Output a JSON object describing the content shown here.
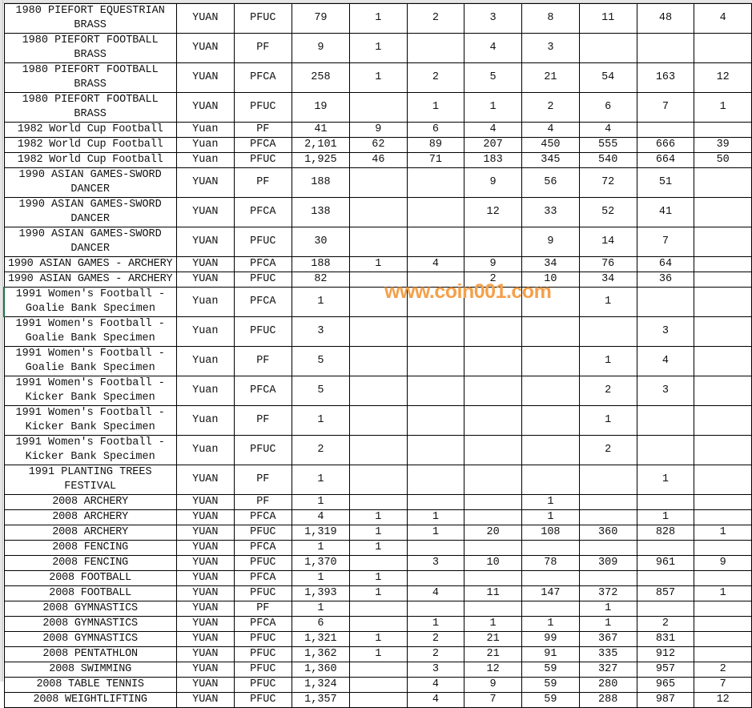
{
  "sheet": {
    "rows": [
      {
        "name": "1980 PIEFORT EQUESTRIAN BRASS",
        "unit": "YUAN",
        "type": "PFUC",
        "vals": [
          "79",
          "1",
          "2",
          "3",
          "8",
          "11",
          "48",
          "4"
        ]
      },
      {
        "name": "1980 PIEFORT FOOTBALL BRASS",
        "unit": "YUAN",
        "type": "PF",
        "vals": [
          "9",
          "1",
          "",
          "4",
          "3",
          "",
          "",
          ""
        ]
      },
      {
        "name": "1980 PIEFORT FOOTBALL BRASS",
        "unit": "YUAN",
        "type": "PFCA",
        "vals": [
          "258",
          "1",
          "2",
          "5",
          "21",
          "54",
          "163",
          "12"
        ]
      },
      {
        "name": "1980 PIEFORT FOOTBALL BRASS",
        "unit": "YUAN",
        "type": "PFUC",
        "vals": [
          "19",
          "",
          "1",
          "1",
          "2",
          "6",
          "7",
          "1"
        ]
      },
      {
        "name": "1982 World Cup Football",
        "unit": "Yuan",
        "type": "PF",
        "vals": [
          "41",
          "9",
          "6",
          "4",
          "4",
          "4",
          "",
          ""
        ]
      },
      {
        "name": "1982 World Cup Football",
        "unit": "Yuan",
        "type": "PFCA",
        "vals": [
          "2,101",
          "62",
          "89",
          "207",
          "450",
          "555",
          "666",
          "39"
        ]
      },
      {
        "name": "1982 World Cup Football",
        "unit": "Yuan",
        "type": "PFUC",
        "vals": [
          "1,925",
          "46",
          "71",
          "183",
          "345",
          "540",
          "664",
          "50"
        ]
      },
      {
        "name": "1990 ASIAN GAMES-SWORD DANCER",
        "unit": "YUAN",
        "type": "PF",
        "vals": [
          "188",
          "",
          "",
          "9",
          "56",
          "72",
          "51",
          ""
        ]
      },
      {
        "name": "1990 ASIAN GAMES-SWORD DANCER",
        "unit": "YUAN",
        "type": "PFCA",
        "vals": [
          "138",
          "",
          "",
          "12",
          "33",
          "52",
          "41",
          ""
        ]
      },
      {
        "name": "1990 ASIAN GAMES-SWORD DANCER",
        "unit": "YUAN",
        "type": "PFUC",
        "vals": [
          "30",
          "",
          "",
          "",
          "9",
          "14",
          "7",
          ""
        ]
      },
      {
        "name": "1990 ASIAN GAMES - ARCHERY",
        "unit": "YUAN",
        "type": "PFCA",
        "vals": [
          "188",
          "1",
          "4",
          "9",
          "34",
          "76",
          "64",
          ""
        ]
      },
      {
        "name": "1990 ASIAN GAMES - ARCHERY",
        "unit": "YUAN",
        "type": "PFUC",
        "vals": [
          "82",
          "",
          "",
          "2",
          "10",
          "34",
          "36",
          ""
        ]
      },
      {
        "name": "1991 Women's Football - Goalie Bank Specimen",
        "unit": "Yuan",
        "type": "PFCA",
        "vals": [
          "1",
          "",
          "",
          "",
          "",
          "1",
          "",
          ""
        ]
      },
      {
        "name": "1991 Women's Football - Goalie Bank Specimen",
        "unit": "Yuan",
        "type": "PFUC",
        "vals": [
          "3",
          "",
          "",
          "",
          "",
          "",
          "3",
          ""
        ]
      },
      {
        "name": "1991 Women's Football - Goalie Bank Specimen",
        "unit": "Yuan",
        "type": "PF",
        "vals": [
          "5",
          "",
          "",
          "",
          "",
          "1",
          "4",
          ""
        ]
      },
      {
        "name": "1991 Women's Football - Kicker Bank Specimen",
        "unit": "Yuan",
        "type": "PFCA",
        "vals": [
          "5",
          "",
          "",
          "",
          "",
          "2",
          "3",
          ""
        ]
      },
      {
        "name": "1991 Women's Football - Kicker Bank Specimen",
        "unit": "Yuan",
        "type": "PF",
        "vals": [
          "1",
          "",
          "",
          "",
          "",
          "1",
          "",
          ""
        ]
      },
      {
        "name": "1991 Women's Football - Kicker Bank Specimen",
        "unit": "Yuan",
        "type": "PFUC",
        "vals": [
          "2",
          "",
          "",
          "",
          "",
          "2",
          "",
          ""
        ]
      },
      {
        "name": "1991 PLANTING TREES FESTIVAL",
        "unit": "YUAN",
        "type": "PF",
        "vals": [
          "1",
          "",
          "",
          "",
          "",
          "",
          "1",
          ""
        ]
      },
      {
        "name": "2008 ARCHERY",
        "unit": "YUAN",
        "type": "PF",
        "vals": [
          "1",
          "",
          "",
          "",
          "1",
          "",
          "",
          ""
        ]
      },
      {
        "name": "2008 ARCHERY",
        "unit": "YUAN",
        "type": "PFCA",
        "vals": [
          "4",
          "1",
          "1",
          "",
          "1",
          "",
          "1",
          ""
        ]
      },
      {
        "name": "2008 ARCHERY",
        "unit": "YUAN",
        "type": "PFUC",
        "vals": [
          "1,319",
          "1",
          "1",
          "20",
          "108",
          "360",
          "828",
          "1"
        ]
      },
      {
        "name": "2008 FENCING",
        "unit": "YUAN",
        "type": "PFCA",
        "vals": [
          "1",
          "1",
          "",
          "",
          "",
          "",
          "",
          ""
        ]
      },
      {
        "name": "2008 FENCING",
        "unit": "YUAN",
        "type": "PFUC",
        "vals": [
          "1,370",
          "",
          "3",
          "10",
          "78",
          "309",
          "961",
          "9"
        ]
      },
      {
        "name": "2008 FOOTBALL",
        "unit": "YUAN",
        "type": "PFCA",
        "vals": [
          "1",
          "1",
          "",
          "",
          "",
          "",
          "",
          ""
        ]
      },
      {
        "name": "2008 FOOTBALL",
        "unit": "YUAN",
        "type": "PFUC",
        "vals": [
          "1,393",
          "1",
          "4",
          "11",
          "147",
          "372",
          "857",
          "1"
        ]
      },
      {
        "name": "2008 GYMNASTICS",
        "unit": "YUAN",
        "type": "PF",
        "vals": [
          "1",
          "",
          "",
          "",
          "",
          "1",
          "",
          ""
        ]
      },
      {
        "name": "2008 GYMNASTICS",
        "unit": "YUAN",
        "type": "PFCA",
        "vals": [
          "6",
          "",
          "1",
          "1",
          "1",
          "1",
          "2",
          ""
        ]
      },
      {
        "name": "2008 GYMNASTICS",
        "unit": "YUAN",
        "type": "PFUC",
        "vals": [
          "1,321",
          "1",
          "2",
          "21",
          "99",
          "367",
          "831",
          ""
        ]
      },
      {
        "name": "2008 PENTATHLON",
        "unit": "YUAN",
        "type": "PFUC",
        "vals": [
          "1,362",
          "1",
          "2",
          "21",
          "91",
          "335",
          "912",
          ""
        ]
      },
      {
        "name": "2008 SWIMMING",
        "unit": "YUAN",
        "type": "PFUC",
        "vals": [
          "1,360",
          "",
          "3",
          "12",
          "59",
          "327",
          "957",
          "2"
        ]
      },
      {
        "name": "2008 TABLE TENNIS",
        "unit": "YUAN",
        "type": "PFUC",
        "vals": [
          "1,324",
          "",
          "4",
          "9",
          "59",
          "280",
          "965",
          "7"
        ]
      },
      {
        "name": "2008 WEIGHTLIFTING",
        "unit": "YUAN",
        "type": "PFUC",
        "vals": [
          "1,357",
          "",
          "4",
          "7",
          "59",
          "288",
          "987",
          "12"
        ]
      }
    ],
    "selected_row_index": 12
  },
  "watermark": "www.coin001.com",
  "colors": {
    "grid": "#000000",
    "selection": "#217346",
    "watermark": "#f5a04a"
  }
}
